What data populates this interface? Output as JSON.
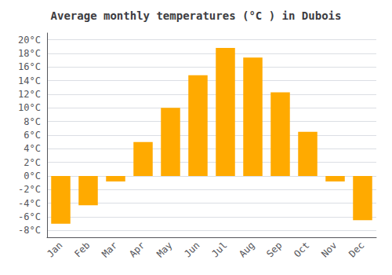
{
  "chart_data": {
    "type": "bar",
    "title": "Average monthly temperatures (°C ) in Dubois",
    "categories": [
      "Jan",
      "Feb",
      "Mar",
      "Apr",
      "May",
      "Jun",
      "Jul",
      "Aug",
      "Sep",
      "Oct",
      "Nov",
      "Dec"
    ],
    "values": [
      -7.0,
      -4.3,
      -0.8,
      5.0,
      10.0,
      14.8,
      18.8,
      17.4,
      12.3,
      6.5,
      -0.8,
      -6.5
    ],
    "color": "#FFAA00",
    "ylim": [
      -9,
      21
    ],
    "yticks": [
      {
        "value": -8,
        "label": "-8°C"
      },
      {
        "value": -6,
        "label": "-6°C"
      },
      {
        "value": -4,
        "label": "-4°C"
      },
      {
        "value": -2,
        "label": "-2°C"
      },
      {
        "value": 0,
        "label": "0°C"
      },
      {
        "value": 2,
        "label": "2°C"
      },
      {
        "value": 4,
        "label": "4°C"
      },
      {
        "value": 6,
        "label": "6°C"
      },
      {
        "value": 8,
        "label": "8°C"
      },
      {
        "value": 10,
        "label": "10°C"
      },
      {
        "value": 12,
        "label": "12°C"
      },
      {
        "value": 14,
        "label": "14°C"
      },
      {
        "value": 16,
        "label": "16°C"
      },
      {
        "value": 18,
        "label": "18°C"
      },
      {
        "value": 20,
        "label": "20°C"
      }
    ],
    "grid": true
  }
}
